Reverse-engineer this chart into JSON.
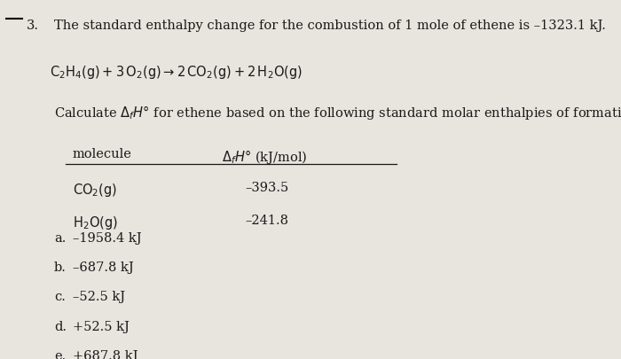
{
  "background_color": "#e8e4de",
  "question_number": "3.",
  "line1": "The standard enthalpy change for the combustion of 1 mole of ethene is –1323.1 kJ.",
  "table_col1_header": "molecule",
  "table_col2_header": "ΔƒH° (kJ/mol)",
  "table_rows": [
    [
      "CO₂(g)",
      "–393.5"
    ],
    [
      "H₂O(g)",
      "–241.8"
    ]
  ],
  "choices": [
    [
      "a.",
      "–1958.4 kJ"
    ],
    [
      "b.",
      "–687.8 kJ"
    ],
    [
      "c.",
      "–52.5 kJ"
    ],
    [
      "d.",
      "+52.5 kJ"
    ],
    [
      "e.",
      "+687.8 kJ"
    ]
  ],
  "font_size_main": 10.5,
  "font_size_table": 10.5,
  "font_size_choices": 10.5,
  "text_color": "#1a1a1a",
  "line_color": "#1a1a1a"
}
